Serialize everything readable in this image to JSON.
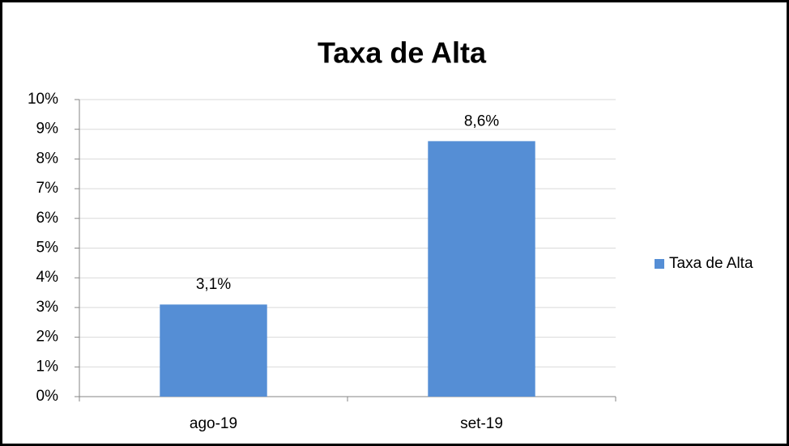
{
  "chart_data": {
    "type": "bar",
    "title": "Taxa de Alta",
    "categories": [
      "ago-19",
      "set-19"
    ],
    "series": [
      {
        "name": "Taxa de Alta",
        "color": "#558ed5",
        "values": [
          3.1,
          8.6
        ],
        "value_labels": [
          "3,1%",
          "8,6%"
        ]
      }
    ],
    "ylim": [
      0,
      10
    ],
    "yticks": [
      {
        "value": 0,
        "label": "0%"
      },
      {
        "value": 1,
        "label": "1%"
      },
      {
        "value": 2,
        "label": "2%"
      },
      {
        "value": 3,
        "label": "3%"
      },
      {
        "value": 4,
        "label": "4%"
      },
      {
        "value": 5,
        "label": "5%"
      },
      {
        "value": 6,
        "label": "6%"
      },
      {
        "value": 7,
        "label": "7%"
      },
      {
        "value": 8,
        "label": "8%"
      },
      {
        "value": 9,
        "label": "9%"
      },
      {
        "value": 10,
        "label": "10%"
      }
    ],
    "grid": true,
    "legend": "right"
  }
}
